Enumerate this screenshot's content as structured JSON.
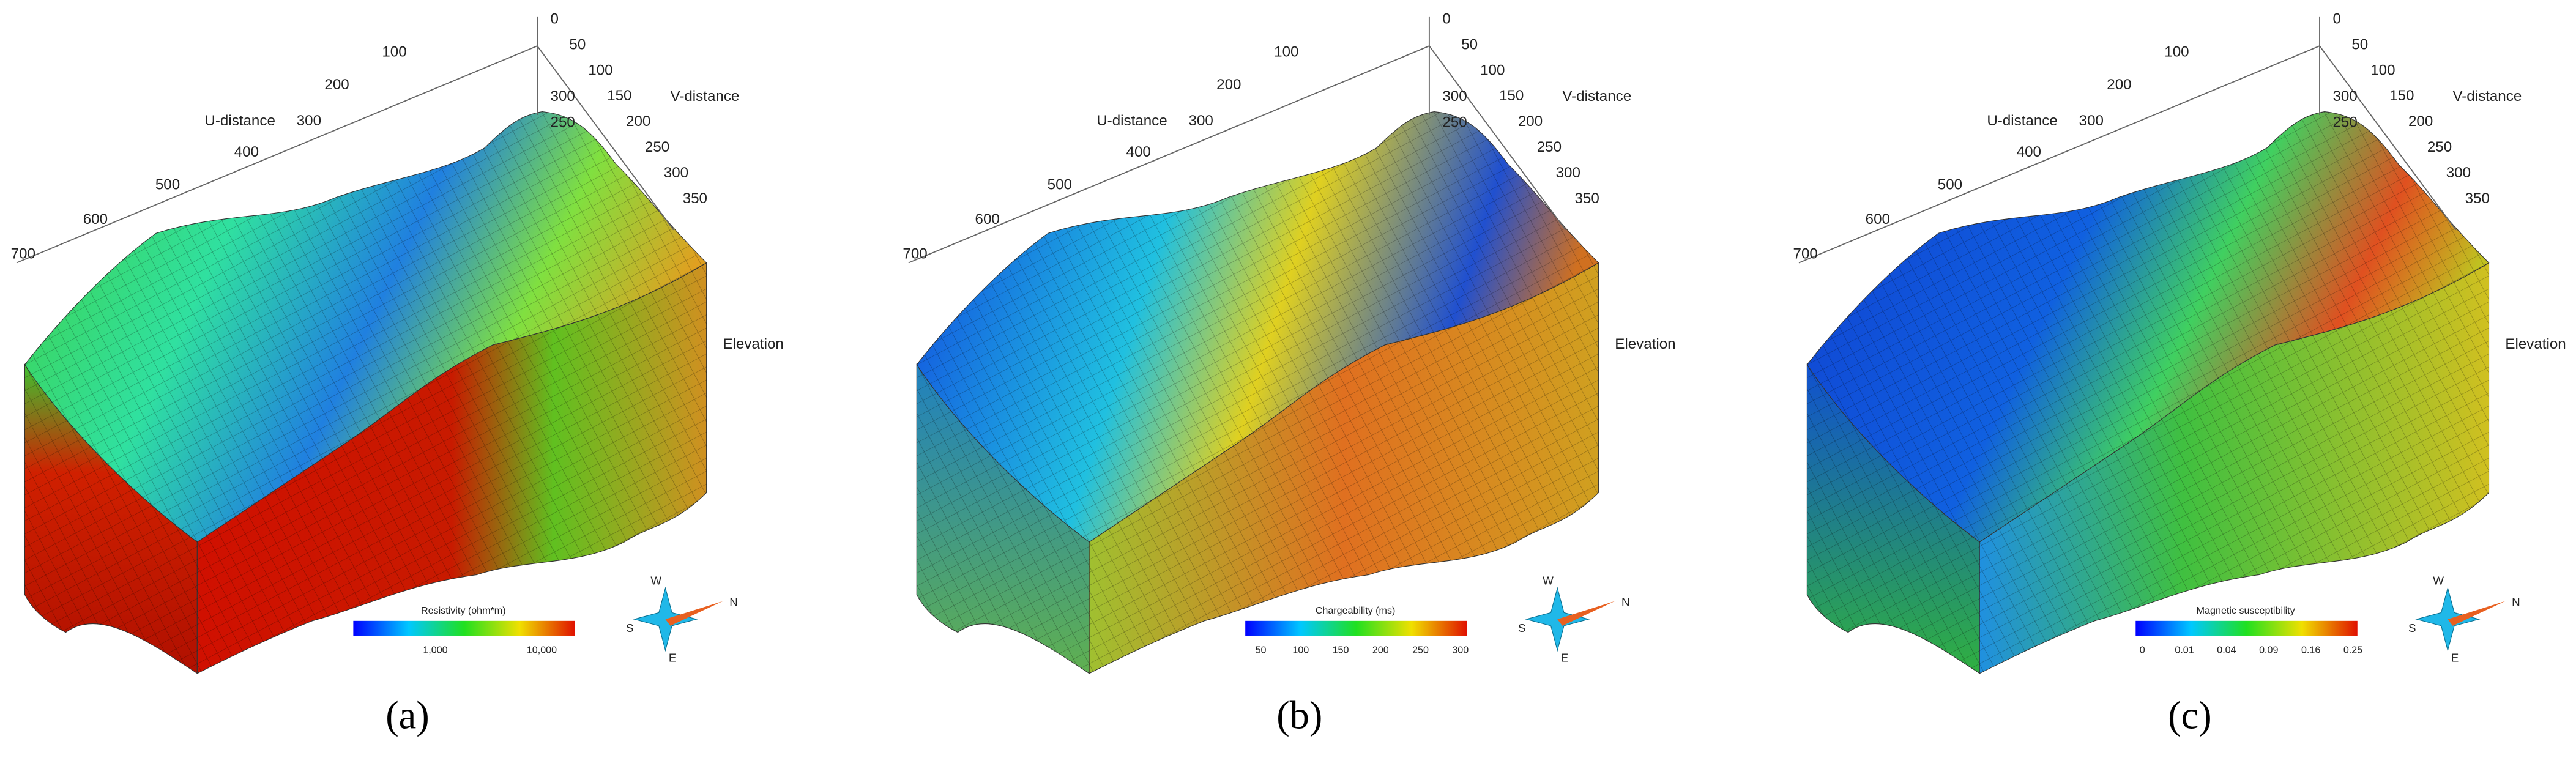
{
  "panels": [
    {
      "label": "(a)",
      "u_axis": {
        "title": "U-distance",
        "ticks": [
          "100",
          "200",
          "300",
          "400",
          "500",
          "600",
          "700"
        ]
      },
      "v_axis": {
        "title": "V-distance",
        "ticks": [
          "0",
          "50",
          "100",
          "150",
          "200",
          "250",
          "300",
          "350"
        ]
      },
      "elevation_ticks": [
        "300",
        "250"
      ],
      "elevation_label": "Elevation",
      "colorbar": {
        "title": "Resistivity (ohm*m)",
        "ticks": [
          "1,000",
          "10,000"
        ]
      },
      "compass": {
        "west": "W",
        "north": "N",
        "south": "S",
        "east": "E"
      }
    },
    {
      "label": "(b)",
      "u_axis": {
        "title": "U-distance",
        "ticks": [
          "100",
          "200",
          "300",
          "400",
          "500",
          "600",
          "700"
        ]
      },
      "v_axis": {
        "title": "V-distance",
        "ticks": [
          "0",
          "50",
          "100",
          "150",
          "200",
          "250",
          "300",
          "350"
        ]
      },
      "elevation_ticks": [
        "300",
        "250"
      ],
      "elevation_label": "Elevation",
      "colorbar": {
        "title": "Chargeability (ms)",
        "ticks": [
          "50",
          "100",
          "150",
          "200",
          "250",
          "300"
        ]
      },
      "compass": {
        "west": "W",
        "north": "N",
        "south": "S",
        "east": "E"
      }
    },
    {
      "label": "(c)",
      "u_axis": {
        "title": "U-distance",
        "ticks": [
          "100",
          "200",
          "300",
          "400",
          "500",
          "600",
          "700"
        ]
      },
      "v_axis": {
        "title": "V-distance",
        "ticks": [
          "0",
          "50",
          "100",
          "150",
          "200",
          "250",
          "300",
          "350"
        ]
      },
      "elevation_ticks": [
        "300",
        "250"
      ],
      "elevation_label": "Elevation",
      "colorbar": {
        "title": "Magnetic susceptibility",
        "ticks": [
          "0",
          "0.01",
          "0.04",
          "0.09",
          "0.16",
          "0.25"
        ]
      },
      "compass": {
        "west": "W",
        "north": "N",
        "south": "S",
        "east": "E"
      }
    }
  ]
}
